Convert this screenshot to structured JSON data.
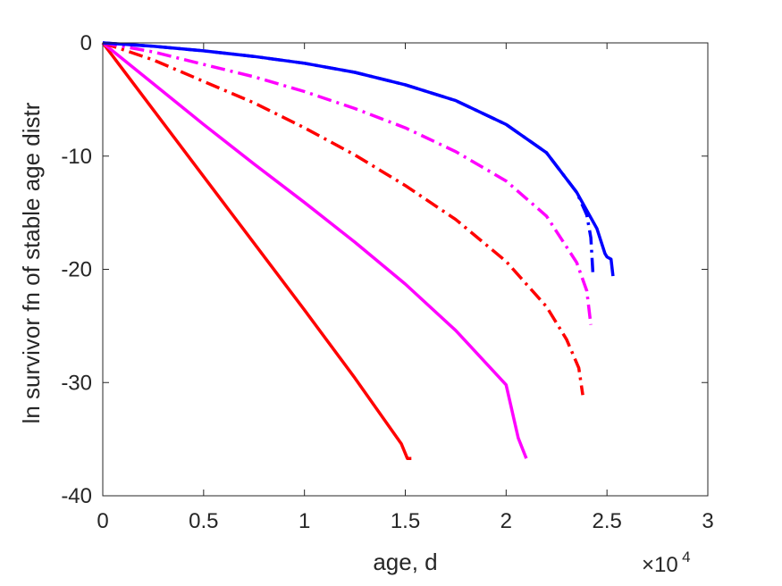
{
  "chart_data": {
    "type": "line",
    "title": "",
    "xlabel": "age, d",
    "ylabel": "ln survivor fn of stable age distr",
    "x_exponent_label": {
      "base": "×10",
      "exponent": "4"
    },
    "xlim": [
      0,
      3
    ],
    "ylim": [
      -40,
      0
    ],
    "x_ticks": [
      0,
      0.5,
      1,
      1.5,
      2,
      2.5,
      3
    ],
    "x_tick_labels": [
      "0",
      "0.5",
      "1",
      "1.5",
      "2",
      "2.5",
      "3"
    ],
    "y_ticks": [
      0,
      -10,
      -20,
      -30,
      -40
    ],
    "y_tick_labels": [
      "0",
      "-10",
      "-20",
      "-30",
      "-40"
    ],
    "grid": false,
    "box": true,
    "series": [
      {
        "color": "#ff0000",
        "style": "solid",
        "x": [
          0,
          0.25,
          0.5,
          0.75,
          1.0,
          1.25,
          1.48,
          1.51,
          1.53
        ],
        "y": [
          0,
          -5.9,
          -11.8,
          -17.7,
          -23.6,
          -29.6,
          -35.4,
          -36.7,
          -36.7
        ]
      },
      {
        "color": "#ff00ff",
        "style": "solid",
        "x": [
          0,
          0.25,
          0.5,
          0.75,
          1.0,
          1.25,
          1.5,
          1.75,
          2.0,
          2.06,
          2.08,
          2.1
        ],
        "y": [
          0,
          -3.6,
          -7.2,
          -10.7,
          -14.1,
          -17.6,
          -21.3,
          -25.4,
          -30.2,
          -34.9,
          -35.8,
          -36.7
        ]
      },
      {
        "color": "#ff0000",
        "style": "dashdot",
        "x": [
          0,
          0.25,
          0.5,
          0.75,
          1.0,
          1.25,
          1.5,
          1.75,
          2.0,
          2.2,
          2.3,
          2.36,
          2.38
        ],
        "y": [
          0,
          -1.5,
          -3.4,
          -5.3,
          -7.5,
          -9.9,
          -12.6,
          -15.6,
          -19.3,
          -23.3,
          -26.2,
          -28.7,
          -31.1
        ]
      },
      {
        "color": "#ff00ff",
        "style": "dashdot",
        "x": [
          0,
          0.25,
          0.5,
          0.75,
          1.0,
          1.25,
          1.5,
          1.75,
          2.0,
          2.2,
          2.35,
          2.4,
          2.42
        ],
        "y": [
          0,
          -0.8,
          -1.9,
          -3.0,
          -4.3,
          -5.8,
          -7.5,
          -9.6,
          -12.2,
          -15.3,
          -19.4,
          -21.9,
          -24.9
        ]
      },
      {
        "color": "#0000ff",
        "style": "dashdot",
        "x": [
          0,
          0.25,
          0.5,
          0.75,
          1.0,
          1.25,
          1.5,
          1.75,
          2.0,
          2.2,
          2.35,
          2.4,
          2.42,
          2.43
        ],
        "y": [
          0,
          -0.3,
          -0.7,
          -1.2,
          -1.8,
          -2.6,
          -3.7,
          -5.1,
          -7.2,
          -9.7,
          -13.2,
          -15.2,
          -17.2,
          -20.3
        ]
      },
      {
        "color": "#0000ff",
        "style": "solid",
        "x": [
          0,
          0.25,
          0.5,
          0.75,
          1.0,
          1.25,
          1.5,
          1.75,
          2.0,
          2.2,
          2.35,
          2.45,
          2.49,
          2.5,
          2.52,
          2.53
        ],
        "y": [
          0,
          -0.3,
          -0.7,
          -1.2,
          -1.8,
          -2.6,
          -3.7,
          -5.1,
          -7.2,
          -9.7,
          -13.2,
          -16.4,
          -18.6,
          -18.9,
          -19.1,
          -20.6
        ]
      }
    ]
  }
}
